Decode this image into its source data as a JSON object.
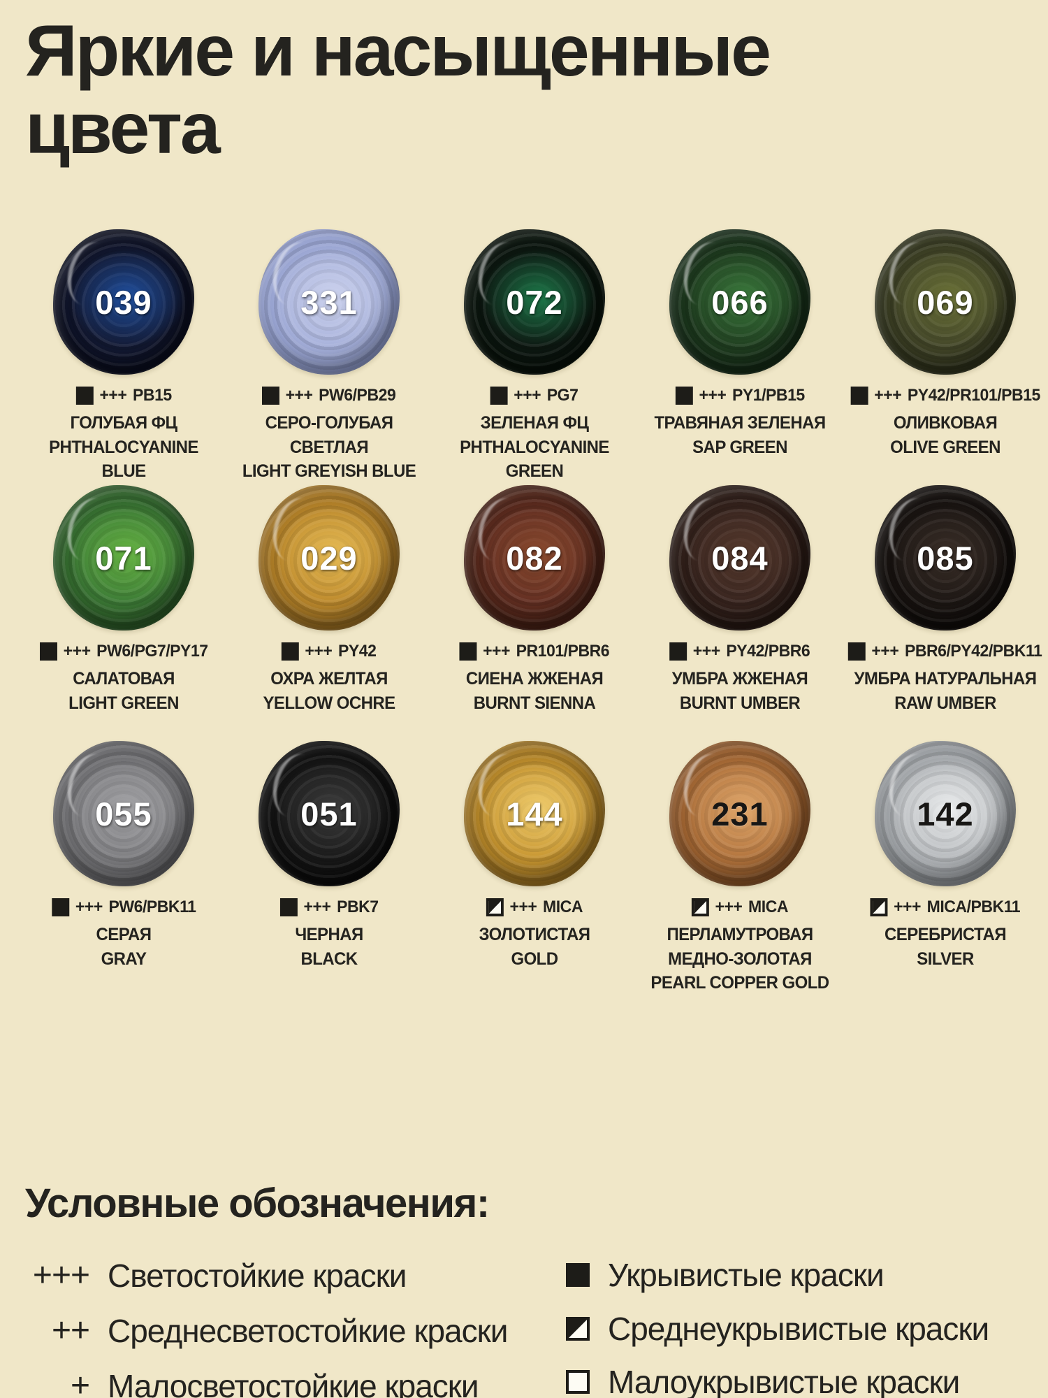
{
  "title": "Яркие и насыщенные\nцвета",
  "theme": {
    "background": "#f0e7c8",
    "text": "#24231f",
    "number_light": "#ffffff",
    "number_dark": "#181715"
  },
  "paints": [
    {
      "code": "039",
      "lightfastness": "+++",
      "pigment": "PB15",
      "opacity": "opaque",
      "name_ru": "ГОЛУБАЯ ФЦ",
      "name_en": "PHTHALOCYANINE BLUE",
      "number_color": "light",
      "swatch": {
        "base": "#141b36",
        "mid": "#2050a0",
        "deep": "#0a0d1e"
      }
    },
    {
      "code": "331",
      "lightfastness": "+++",
      "pigment": "PW6/PB29",
      "opacity": "opaque",
      "name_ru": "СЕРО-ГОЛУБАЯ СВЕТЛАЯ",
      "name_en": "LIGHT GREYISH BLUE",
      "number_color": "light",
      "swatch": {
        "base": "#a9b3dc",
        "mid": "#cdd3ee",
        "deep": "#8e9aca"
      }
    },
    {
      "code": "072",
      "lightfastness": "+++",
      "pigment": "PG7",
      "opacity": "opaque",
      "name_ru": "ЗЕЛЕНАЯ ФЦ",
      "name_en": "PHTHALOCYANINE GREEN",
      "number_color": "light",
      "swatch": {
        "base": "#0e1913",
        "mid": "#1d7a4a",
        "deep": "#071009"
      }
    },
    {
      "code": "066",
      "lightfastness": "+++",
      "pigment": "PY1/PB15",
      "opacity": "opaque",
      "name_ru": "ТРАВЯНАЯ ЗЕЛЕНАЯ",
      "name_en": "SAP GREEN",
      "number_color": "light",
      "swatch": {
        "base": "#214021",
        "mid": "#3a7a3c",
        "deep": "#142a16"
      }
    },
    {
      "code": "069",
      "lightfastness": "+++",
      "pigment": "PY42/PR101/PB15",
      "opacity": "opaque",
      "name_ru": "ОЛИВКОВАЯ",
      "name_en": "OLIVE GREEN",
      "number_color": "light",
      "swatch": {
        "base": "#45482a",
        "mid": "#6b7237",
        "deep": "#2e311b"
      }
    },
    {
      "code": "071",
      "lightfastness": "+++",
      "pigment": "PW6/PG7/PY17",
      "opacity": "opaque",
      "name_ru": "САЛАТОВАЯ",
      "name_en": "LIGHT GREEN",
      "number_color": "light",
      "swatch": {
        "base": "#3e7d37",
        "mid": "#66b443",
        "deep": "#2a5826"
      }
    },
    {
      "code": "029",
      "lightfastness": "+++",
      "pigment": "PY42",
      "opacity": "opaque",
      "name_ru": "ОХРА ЖЕЛТАЯ",
      "name_en": "YELLOW OCHRE",
      "number_color": "light",
      "swatch": {
        "base": "#bf8c2e",
        "mid": "#e7bc55",
        "deep": "#9a6d20"
      }
    },
    {
      "code": "082",
      "lightfastness": "+++",
      "pigment": "PR101/PBR6",
      "opacity": "opaque",
      "name_ru": "СИЕНА ЖЖЕНАЯ",
      "name_en": "BURNT SIENNA",
      "number_color": "light",
      "swatch": {
        "base": "#653023",
        "mid": "#8a4a2e",
        "deep": "#451f14"
      }
    },
    {
      "code": "084",
      "lightfastness": "+++",
      "pigment": "PY42/PBR6",
      "opacity": "opaque",
      "name_ru": "УМБРА ЖЖЕНАЯ",
      "name_en": "BURNT UMBER",
      "number_color": "light",
      "swatch": {
        "base": "#3a2620",
        "mid": "#573a2d",
        "deep": "#251712"
      }
    },
    {
      "code": "085",
      "lightfastness": "+++",
      "pigment": "PBR6/PY42/PBK11",
      "opacity": "opaque",
      "name_ru": "УМБРА НАТУРАЛЬНАЯ",
      "name_en": "RAW UMBER",
      "number_color": "light",
      "swatch": {
        "base": "#1e1815",
        "mid": "#3b2f28",
        "deep": "#100c0a"
      }
    },
    {
      "code": "055",
      "lightfastness": "+++",
      "pigment": "PW6/PBK11",
      "opacity": "opaque",
      "name_ru": "СЕРАЯ",
      "name_en": "GRAY",
      "number_color": "light",
      "swatch": {
        "base": "#808083",
        "mid": "#a4a4a7",
        "deep": "#616164"
      }
    },
    {
      "code": "051",
      "lightfastness": "+++",
      "pigment": "PBK7",
      "opacity": "opaque",
      "name_ru": "ЧЕРНАЯ",
      "name_en": "BLACK",
      "number_color": "light",
      "swatch": {
        "base": "#1b1b1b",
        "mid": "#3d3d3d",
        "deep": "#0a0a0a"
      }
    },
    {
      "code": "144",
      "lightfastness": "+++",
      "pigment": "MICA",
      "opacity": "semi",
      "name_ru": "ЗОЛОТИСТАЯ",
      "name_en": "GOLD",
      "number_color": "light",
      "swatch": {
        "base": "#c99833",
        "mid": "#f0cd6e",
        "deep": "#9c711f"
      }
    },
    {
      "code": "231",
      "lightfastness": "+++",
      "pigment": "MICA",
      "opacity": "semi",
      "name_ru": "ПЕРЛАМУТРОВАЯ\nМЕДНО-ЗОЛОТАЯ",
      "name_en": "PEARL COPPER GOLD",
      "number_color": "dark",
      "swatch": {
        "base": "#b4763f",
        "mid": "#e0a76b",
        "deep": "#8a5326"
      }
    },
    {
      "code": "142",
      "lightfastness": "+++",
      "pigment": "MICA/PBK11",
      "opacity": "semi",
      "name_ru": "СЕРЕБРИСТАЯ",
      "name_en": "SILVER",
      "number_color": "dark",
      "swatch": {
        "base": "#b9bcbf",
        "mid": "#eceeef",
        "deep": "#8e9296"
      }
    }
  ],
  "legend": {
    "title": "Условные обозначения:",
    "lightfastness_items": [
      {
        "symbol": "+++",
        "label": "Светостойкие краски"
      },
      {
        "symbol": "++",
        "label": "Среднесветостойкие краски"
      },
      {
        "symbol": "+",
        "label": "Малосветостойкие краски"
      }
    ],
    "opacity_items": [
      {
        "icon": "opaque",
        "label": "Укрывистые краски"
      },
      {
        "icon": "semi",
        "label": "Среднеукрывистые краски"
      },
      {
        "icon": "transparent",
        "label": "Малоукрывистые краски"
      }
    ]
  }
}
